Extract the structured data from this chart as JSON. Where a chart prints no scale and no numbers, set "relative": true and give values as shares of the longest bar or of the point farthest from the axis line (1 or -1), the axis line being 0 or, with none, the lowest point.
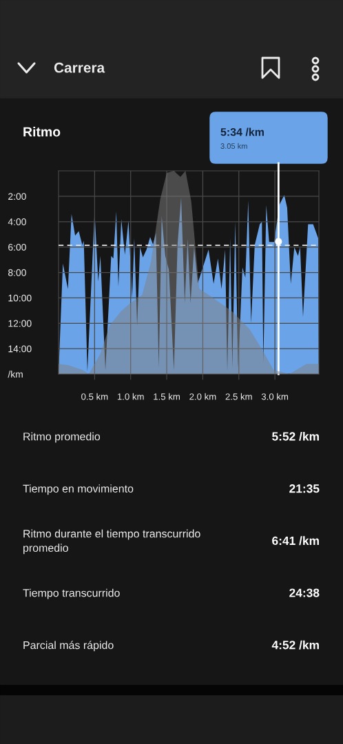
{
  "chart_data": [
    {
      "type": "other",
      "title": "Carrera"
    },
    {
      "type": "area",
      "title": "Ritmo",
      "series": [
        {
          "type": "area",
          "color": "#6aa3e8",
          "x": [
            0,
            0.06,
            0.13,
            0.18,
            0.23,
            0.28,
            0.33,
            0.35,
            0.4,
            0.5,
            0.55,
            0.58,
            0.65,
            0.73,
            0.76,
            0.8,
            0.83,
            0.87,
            0.92,
            0.97,
            1.02,
            1.05,
            1.09,
            1.13,
            1.17,
            1.22,
            1.27,
            1.31,
            1.35,
            1.39,
            1.43,
            1.48,
            1.53,
            1.6,
            1.65,
            1.7,
            1.75,
            1.79,
            1.83,
            1.88,
            1.93,
            2.08,
            2.15,
            2.21,
            2.26,
            2.31,
            2.34,
            2.38,
            2.41,
            2.45,
            2.49,
            2.55,
            2.59,
            2.63,
            2.67,
            2.72,
            2.79,
            2.82,
            2.84,
            2.88,
            2.92,
            2.99,
            3.06,
            3.13,
            3.17,
            3.22,
            3.27,
            3.32,
            3.35,
            3.39,
            3.46,
            3.53,
            3.6,
            3.61
          ],
          "values": [
            16,
            7.3,
            9.3,
            3.4,
            5.1,
            4.75,
            5.85,
            5.5,
            15.8,
            3.2,
            8.7,
            6.7,
            15.7,
            6.7,
            6.9,
            3.2,
            9.1,
            3.8,
            6.6,
            3.9,
            10.0,
            5.3,
            12.2,
            6.0,
            6.8,
            6.2,
            5.2,
            5.8,
            4.9,
            15.5,
            3.55,
            6.7,
            7.8,
            15.7,
            5.8,
            2.1,
            10.4,
            5.35,
            10.4,
            6.0,
            8.85,
            6.2,
            8.9,
            6.9,
            9.3,
            6.2,
            15.8,
            5.3,
            15.5,
            4.0,
            15.5,
            7.6,
            8.4,
            2.35,
            12.0,
            5.85,
            4.2,
            4.0,
            15.1,
            2.7,
            5.6,
            5.6,
            2.7,
            1.9,
            2.9,
            8.9,
            6.0,
            6.7,
            6.0,
            11.5,
            4.2,
            4.2,
            5.3,
            16
          ]
        },
        {
          "type": "scatter",
          "color": "#ffffff",
          "marker": "circle",
          "x": [
            3.05
          ],
          "values": [
            5.567
          ]
        }
      ],
      "xlim": [
        0,
        3.61
      ],
      "xticks": [
        {
          "value": 0.5,
          "label": "0.5 km"
        },
        {
          "value": 1.0,
          "label": "1.0 km"
        },
        {
          "value": 1.5,
          "label": "1.5 km"
        },
        {
          "value": 2.0,
          "label": "2.0 km"
        },
        {
          "value": 2.5,
          "label": "2.5 km"
        },
        {
          "value": 3.0,
          "label": "3.0 km"
        }
      ],
      "ylim": [
        16,
        0
      ],
      "yticks": [
        {
          "value": 2,
          "label": "2:00"
        },
        {
          "value": 4,
          "label": "4:00"
        },
        {
          "value": 6,
          "label": "6:00"
        },
        {
          "value": 8,
          "label": "8:00"
        },
        {
          "value": 10,
          "label": "10:00"
        },
        {
          "value": 12,
          "label": "12:00"
        },
        {
          "value": 14,
          "label": "14:00"
        },
        {
          "value": 16,
          "label": "/km"
        }
      ],
      "grid": true,
      "ref_lines": [
        {
          "axis": "y",
          "value": 5.867,
          "color": "#e6e6e6",
          "line_style": "dashed"
        },
        {
          "axis": "x",
          "value": 3.05,
          "color": "#ffffff",
          "line_style": "solid"
        }
      ],
      "annotations": [
        "5:34 /km",
        "3.05 km"
      ]
    },
    {
      "type": "area",
      "relative": true,
      "color": "#808080",
      "tick_labels": false,
      "xlim": [
        0,
        3.61
      ],
      "x": [
        0,
        0.13,
        0.33,
        0.42,
        0.58,
        0.71,
        0.87,
        1.0,
        1.16,
        1.28,
        1.41,
        1.5,
        1.6,
        1.69,
        1.76,
        1.84,
        1.95,
        2.08,
        2.4,
        2.65,
        2.84,
        2.98,
        3.2,
        3.44,
        3.61
      ],
      "values": [
        0.05,
        0.044,
        0.02,
        0,
        0.1,
        0.24,
        0.31,
        0.35,
        0.39,
        0.55,
        0.86,
        0.99,
        1.0,
        0.97,
        1.0,
        0.85,
        0.42,
        0.39,
        0.31,
        0.22,
        0.11,
        0.02,
        0,
        0.05,
        0.05
      ]
    },
    {
      "type": "other",
      "categories": [
        "Ritmo promedio",
        "Tiempo en movimiento",
        "Ritmo durante el tiempo transcurrido promedio",
        "Tiempo transcurrido",
        "Parcial más rápido"
      ],
      "value_labels": [
        "5:52 /km",
        "21:35",
        "6:41 /km",
        "24:38",
        "4:52 /km"
      ]
    }
  ]
}
